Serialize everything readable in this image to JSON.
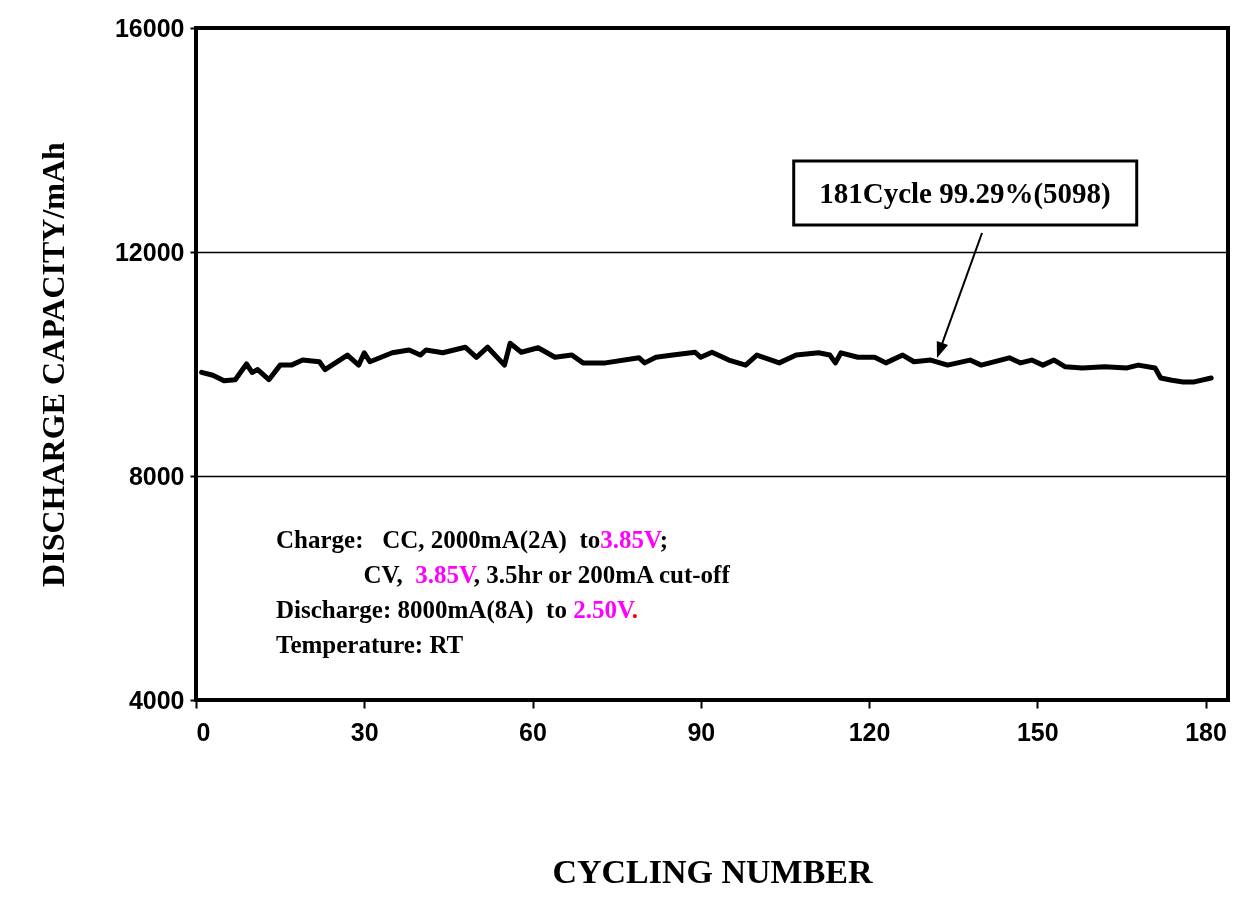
{
  "chart_data": {
    "type": "line",
    "xlabel": "CYCLING NUMBER",
    "ylabel": "DISCHARGE CAPACITY/mAh",
    "x": [
      1,
      3,
      5,
      7,
      9,
      10,
      11,
      13,
      15,
      17,
      19,
      22,
      23,
      27,
      29,
      30,
      31,
      35,
      38,
      40,
      41,
      44,
      48,
      50,
      52,
      55,
      56,
      58,
      61,
      64,
      67,
      69,
      73,
      79,
      80,
      82,
      85,
      89,
      90,
      92,
      95,
      98,
      100,
      104,
      107,
      111,
      113,
      114,
      115,
      118,
      121,
      123,
      126,
      128,
      131,
      134,
      138,
      140,
      145,
      147,
      149,
      151,
      153,
      155,
      158,
      162,
      166,
      168,
      171,
      172,
      174,
      176,
      178,
      181
    ],
    "series": [
      {
        "color": "#000000",
        "values": [
          9850,
          9800,
          9700,
          9720,
          10000,
          9850,
          9900,
          9720,
          9980,
          9980,
          10070,
          10040,
          9900,
          10160,
          9980,
          10200,
          10040,
          10200,
          10250,
          10160,
          10250,
          10200,
          10300,
          10120,
          10300,
          9980,
          10370,
          10210,
          10290,
          10120,
          10160,
          10020,
          10020,
          10110,
          10020,
          10120,
          10160,
          10210,
          10120,
          10210,
          10070,
          9980,
          10160,
          10020,
          10160,
          10200,
          10160,
          10020,
          10200,
          10120,
          10120,
          10020,
          10160,
          10040,
          10070,
          9980,
          10070,
          9980,
          10110,
          10020,
          10070,
          9980,
          10070,
          9950,
          9930,
          9950,
          9930,
          9980,
          9930,
          9750,
          9710,
          9680,
          9680,
          9750
        ]
      }
    ],
    "xlim": [
      0,
      184
    ],
    "ylim": [
      4000,
      16000
    ],
    "xticks": [
      0,
      30,
      60,
      90,
      120,
      150,
      180
    ],
    "yticks": [
      4000,
      8000,
      12000,
      16000
    ],
    "grid": "y",
    "marker": "none",
    "line_style": "solid",
    "annotations": [
      "181Cycle 99.29%(5098)",
      "Charge:   CC, 2000mA(2A)  to3.85V;",
      "              CV,  3.85V, 3.5hr or 200mA cut-off",
      "Discharge: 8000mA(8A)  to 2.50V.",
      "Temperature: RT"
    ]
  }
}
